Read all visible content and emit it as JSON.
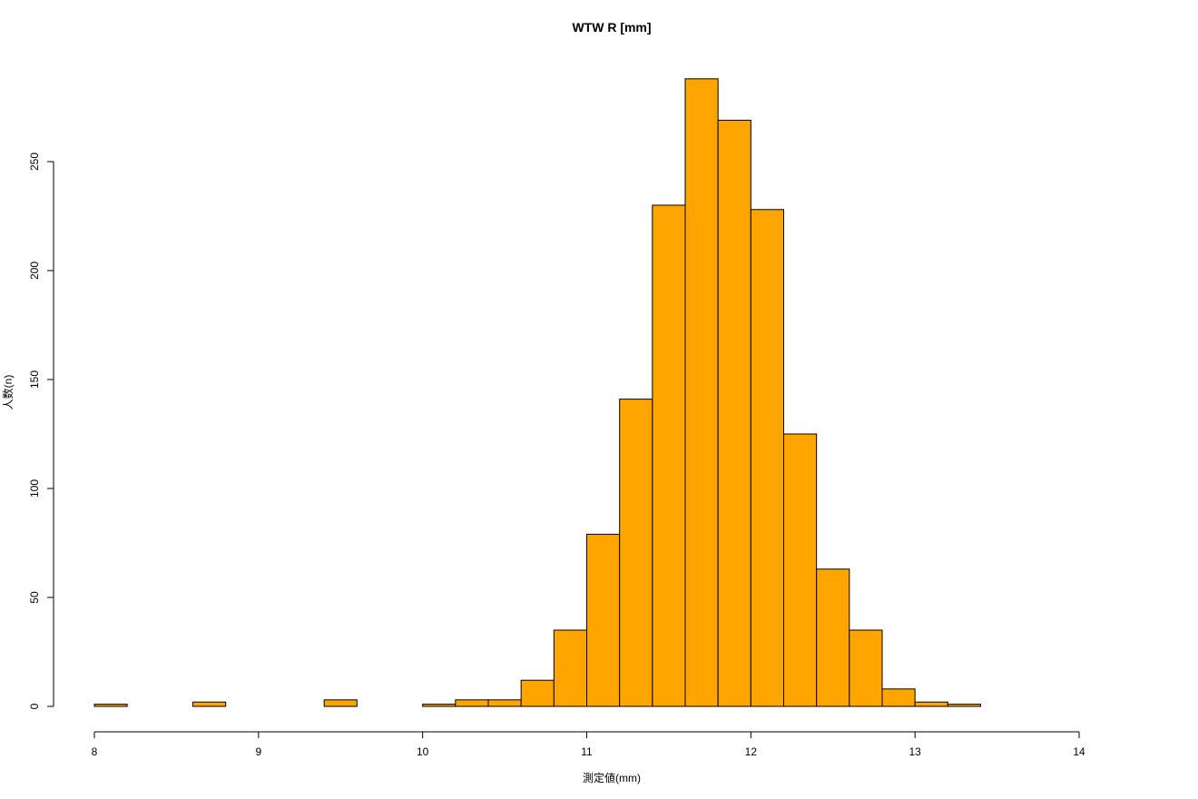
{
  "chart_data": {
    "type": "bar",
    "title": "WTW R [mm]",
    "xlabel": "測定値(mm)",
    "ylabel": "人数(n)",
    "xlim": [
      8,
      14
    ],
    "ylim": [
      0,
      290
    ],
    "x_ticks": [
      8,
      9,
      10,
      11,
      12,
      13,
      14
    ],
    "y_ticks": [
      0,
      50,
      100,
      150,
      200,
      250
    ],
    "bin_width": 0.2,
    "bin_starts": [
      8.0,
      8.2,
      8.4,
      8.6,
      8.8,
      9.0,
      9.2,
      9.4,
      9.6,
      9.8,
      10.0,
      10.2,
      10.4,
      10.6,
      10.8,
      11.0,
      11.2,
      11.4,
      11.6,
      11.8,
      12.0,
      12.2,
      12.4,
      12.6,
      12.8,
      13.0,
      13.2
    ],
    "values": [
      1,
      0,
      0,
      2,
      0,
      0,
      0,
      3,
      0,
      0,
      1,
      3,
      3,
      12,
      35,
      79,
      141,
      230,
      288,
      269,
      228,
      125,
      63,
      35,
      8,
      2,
      1
    ],
    "bar_color": "#FFA500",
    "bar_edge_color": "#000000",
    "grid": false,
    "legend": "none"
  }
}
